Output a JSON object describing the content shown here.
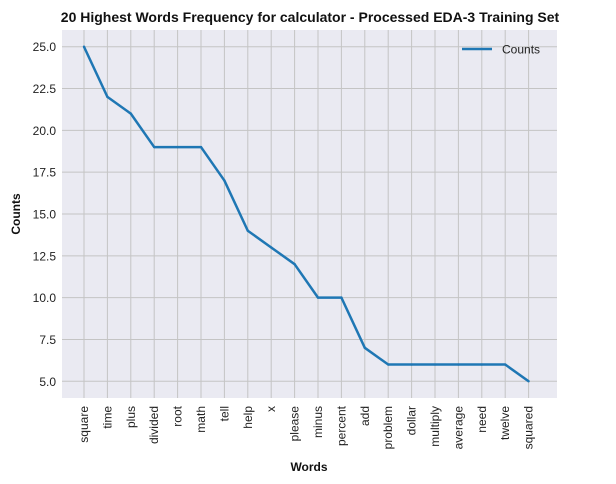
{
  "chart_data": {
    "type": "line",
    "title": "20 Highest Words Frequency for calculator - Processed EDA-3 Training Set",
    "xlabel": "Words",
    "ylabel": "Counts",
    "categories": [
      "square",
      "time",
      "plus",
      "divided",
      "root",
      "math",
      "tell",
      "help",
      "x",
      "please",
      "minus",
      "percent",
      "add",
      "problem",
      "dollar",
      "multiply",
      "average",
      "need",
      "twelve",
      "squared"
    ],
    "series": [
      {
        "name": "Counts",
        "color": "#1f77b4",
        "values": [
          25,
          22,
          21,
          19,
          19,
          19,
          17,
          14,
          13,
          12,
          10,
          10,
          7,
          6,
          6,
          6,
          6,
          6,
          6,
          5
        ]
      }
    ],
    "ylim": [
      4.0,
      26.0
    ],
    "yticks": [
      "5.0",
      "7.5",
      "10.0",
      "12.5",
      "15.0",
      "17.5",
      "20.0",
      "22.5",
      "25.0"
    ],
    "grid": true,
    "legend_position": "top-right",
    "plot_background": "#eaeaf2"
  }
}
